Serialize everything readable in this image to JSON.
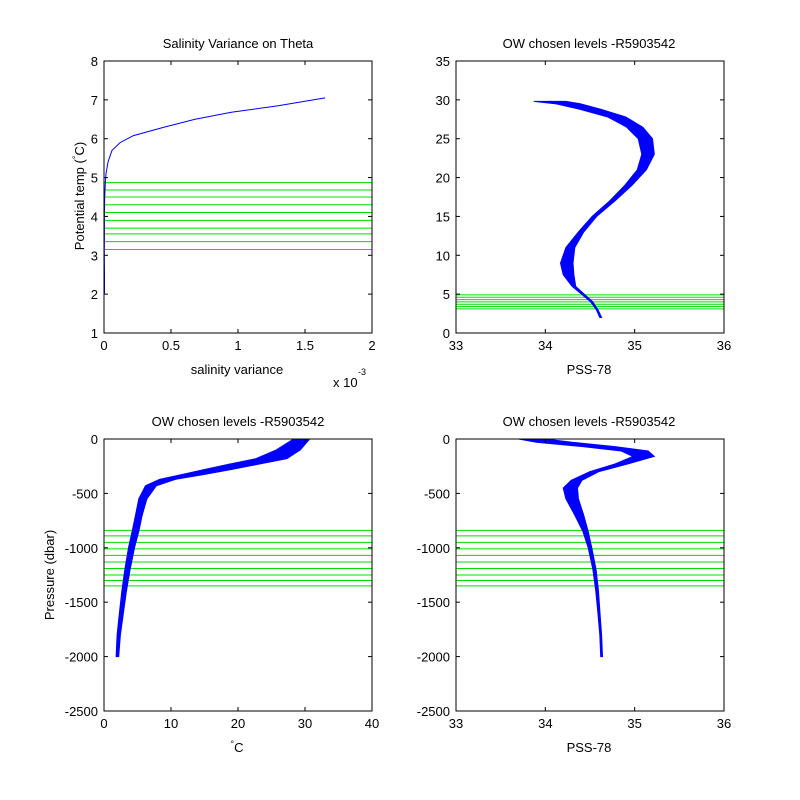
{
  "colors": {
    "profile": "#0000ff",
    "levels": "#00dd00",
    "axes": "#000000"
  },
  "chart_data": [
    {
      "type": "line",
      "title": "Salinity Variance on Theta",
      "xlabel": "salinity variance",
      "xexponent_prefix": "x 10",
      "xexponent_power": "-3",
      "ylabel_main": "Potential temp (",
      "ylabel_degree": "°",
      "ylabel_unit": "C)",
      "xlim": [
        0,
        2
      ],
      "ylim": [
        1,
        8
      ],
      "xticks": [
        0,
        0.5,
        1,
        1.5,
        2
      ],
      "xtick_labels": [
        "0",
        "0.5",
        "1",
        "1.5",
        "2"
      ],
      "yticks": [
        1,
        2,
        3,
        4,
        5,
        6,
        7,
        8
      ],
      "ytick_labels": [
        "1",
        "2",
        "3",
        "4",
        "5",
        "6",
        "7",
        "8"
      ],
      "series": [
        {
          "x": [
            1.65,
            1.3,
            0.95,
            0.68,
            0.45,
            0.22,
            0.12,
            0.06,
            0.03,
            0.015,
            0.01,
            0.005,
            0.003,
            0.003,
            0.002,
            0.004,
            0.004
          ],
          "y": [
            7.05,
            6.85,
            6.68,
            6.5,
            6.3,
            6.08,
            5.9,
            5.7,
            5.4,
            5.1,
            4.85,
            4.5,
            4.0,
            3.5,
            3.0,
            2.5,
            2.02
          ]
        }
      ],
      "hlines": [
        3.15,
        3.35,
        3.55,
        3.7,
        3.9,
        4.1,
        4.3,
        4.5,
        4.68,
        4.87
      ]
    },
    {
      "type": "line",
      "title": "OW chosen levels -R5903542",
      "xlabel": "PSS-78",
      "ylabel": "",
      "xlim": [
        33,
        36
      ],
      "ylim": [
        0,
        35
      ],
      "xticks": [
        33,
        34,
        35,
        36
      ],
      "xtick_labels": [
        "33",
        "34",
        "35",
        "36"
      ],
      "yticks": [
        0,
        5,
        10,
        15,
        20,
        25,
        30,
        35
      ],
      "ytick_labels": [
        "0",
        "5",
        "10",
        "15",
        "20",
        "25",
        "30",
        "35"
      ],
      "series_band": {
        "x": [
          34.62,
          34.58,
          34.52,
          34.42,
          34.32,
          34.26,
          34.24,
          34.28,
          34.4,
          34.55,
          34.75,
          34.93,
          35.08,
          35.15,
          35.12,
          35.0,
          34.8,
          34.5,
          34.25,
          34.05
        ],
        "y": [
          2,
          3,
          4,
          5,
          6,
          7.5,
          9,
          11,
          13,
          15,
          17,
          19,
          21,
          23,
          25,
          26.5,
          27.8,
          28.8,
          29.5,
          29.8
        ],
        "halfwidth": [
          0.01,
          0.01,
          0.012,
          0.015,
          0.02,
          0.06,
          0.07,
          0.05,
          0.03,
          0.025,
          0.03,
          0.04,
          0.05,
          0.07,
          0.08,
          0.09,
          0.1,
          0.12,
          0.14,
          0.18
        ]
      },
      "hlines": [
        3.1,
        3.4,
        3.7,
        4.0,
        4.3,
        4.6,
        4.9
      ]
    },
    {
      "type": "line",
      "title": "OW chosen levels -R5903542",
      "xlabel_degree": "°",
      "xlabel_unit": "C",
      "ylabel": "Pressure (dbar)",
      "xlim": [
        0,
        40
      ],
      "ylim": [
        -2500,
        0
      ],
      "xticks": [
        0,
        10,
        20,
        30,
        40
      ],
      "xtick_labels": [
        "0",
        "10",
        "20",
        "30",
        "40"
      ],
      "yticks": [
        -2500,
        -2000,
        -1500,
        -1000,
        -500,
        0
      ],
      "ytick_labels": [
        "-2500",
        "-2000",
        "-1500",
        "-1000",
        "-500",
        "0"
      ],
      "series_band": {
        "x": [
          2.0,
          2.2,
          2.6,
          3.0,
          3.5,
          4.1,
          4.7,
          5.2,
          5.8,
          7.0,
          9.5,
          13,
          17,
          21,
          25,
          27.5,
          29.5
        ],
        "y": [
          -2000,
          -1800,
          -1600,
          -1400,
          -1200,
          -1000,
          -850,
          -700,
          -550,
          -430,
          -370,
          -330,
          -280,
          -230,
          -180,
          -100,
          0
        ],
        "halfwidth": [
          0.2,
          0.25,
          0.3,
          0.35,
          0.4,
          0.45,
          0.5,
          0.5,
          0.6,
          0.8,
          1.2,
          1.6,
          2.0,
          2.2,
          2.3,
          1.8,
          1.2
        ]
      },
      "hlines": [
        -840,
        -890,
        -950,
        -1010,
        -1070,
        -1130,
        -1190,
        -1250,
        -1300,
        -1350
      ]
    },
    {
      "type": "line",
      "title": "OW chosen levels -R5903542",
      "xlabel": "PSS-78",
      "ylabel": "",
      "xlim": [
        33,
        36
      ],
      "ylim": [
        -2500,
        0
      ],
      "xticks": [
        33,
        34,
        35,
        36
      ],
      "xtick_labels": [
        "33",
        "34",
        "35",
        "36"
      ],
      "yticks": [
        -2500,
        -2000,
        -1500,
        -1000,
        -500,
        0
      ],
      "ytick_labels": [
        "-2500",
        "-2000",
        "-1500",
        "-1000",
        "-500",
        "0"
      ],
      "series_band": {
        "x": [
          34.63,
          34.62,
          34.6,
          34.58,
          34.55,
          34.5,
          34.45,
          34.38,
          34.3,
          34.28,
          34.35,
          34.55,
          34.85,
          35.1,
          35.0,
          34.6,
          34.1,
          33.85
        ],
        "y": [
          -2000,
          -1800,
          -1600,
          -1400,
          -1200,
          -1000,
          -850,
          -700,
          -550,
          -450,
          -380,
          -300,
          -230,
          -160,
          -110,
          -70,
          -30,
          0
        ],
        "halfwidth": [
          0.01,
          0.01,
          0.012,
          0.015,
          0.018,
          0.02,
          0.03,
          0.05,
          0.07,
          0.08,
          0.06,
          0.05,
          0.07,
          0.12,
          0.15,
          0.18,
          0.2,
          0.15
        ]
      },
      "hlines": [
        -840,
        -890,
        -950,
        -1010,
        -1070,
        -1130,
        -1190,
        -1250,
        -1300,
        -1350
      ]
    }
  ]
}
